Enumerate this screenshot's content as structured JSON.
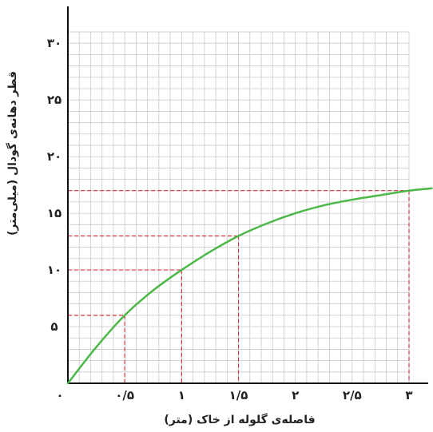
{
  "chart_data": {
    "type": "line",
    "title": "",
    "xlabel": "فاصله‌ی گلوله از خاک (متر)",
    "ylabel": "قطر دهانه‌ی گودال (میلی‌متر)",
    "xlim": [
      0,
      3.2
    ],
    "ylim": [
      0,
      31.5
    ],
    "x_ticks": [
      0,
      0.5,
      1,
      1.5,
      2,
      2.5,
      3
    ],
    "x_tick_labels": [
      "۰",
      "۰/۵",
      "۱",
      "۱/۵",
      "۲",
      "۲/۵",
      "۳"
    ],
    "y_ticks": [
      5,
      10,
      15,
      20,
      25,
      30
    ],
    "y_tick_labels": [
      "۵",
      "۱۰",
      "۱۵",
      "۲۰",
      "۲۵",
      "۳۰"
    ],
    "grid": true,
    "series": [
      {
        "x": [
          0,
          0.25,
          0.5,
          0.75,
          1,
          1.25,
          1.5,
          1.75,
          2,
          2.25,
          2.5,
          2.75,
          3,
          3.2
        ],
        "values": [
          0,
          3.2,
          6.0,
          8.2,
          10.0,
          11.6,
          13.0,
          14.1,
          15.0,
          15.7,
          16.2,
          16.6,
          17.0,
          17.2
        ],
        "color": "#4cb848"
      }
    ],
    "highlight_points": [
      {
        "x": 0.5,
        "y": 6
      },
      {
        "x": 1,
        "y": 10
      },
      {
        "x": 1.5,
        "y": 13
      },
      {
        "x": 3,
        "y": 17
      }
    ],
    "guide_color": "#d9333f"
  }
}
